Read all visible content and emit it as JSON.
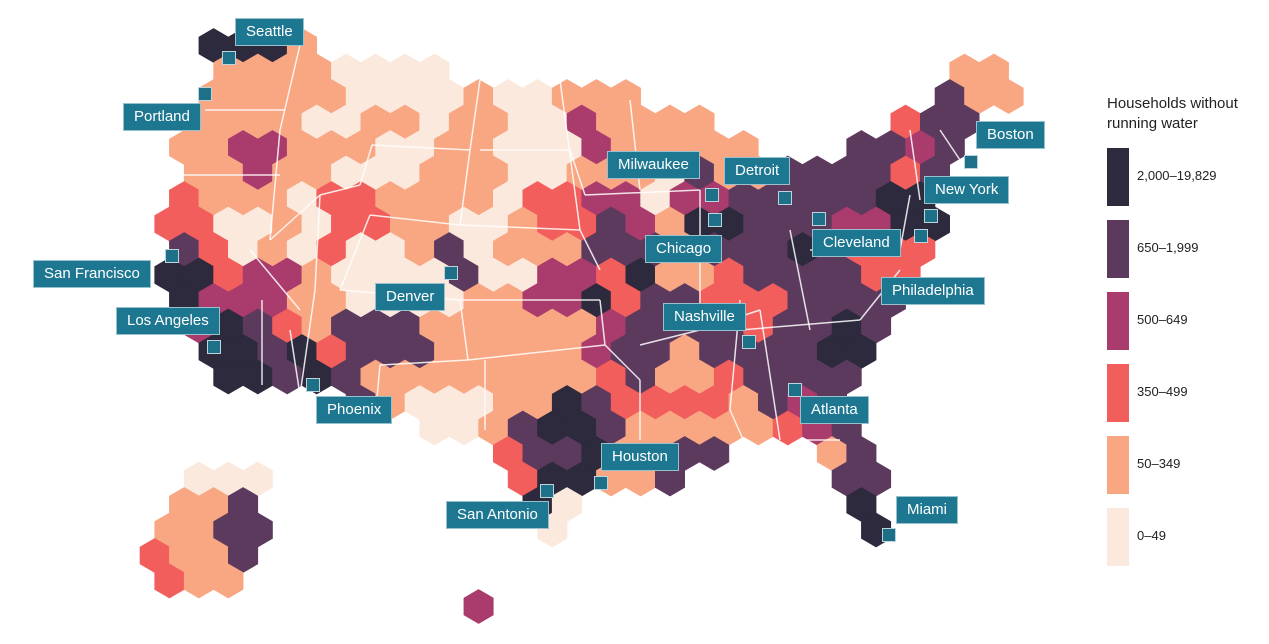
{
  "legend": {
    "title_line1": "Households without",
    "title_line2": "running water",
    "categories": [
      {
        "label": "2,000–19,829",
        "color": "#2d2a3d"
      },
      {
        "label": "650–1,999",
        "color": "#5c3a5e"
      },
      {
        "label": "500–649",
        "color": "#a93b6d"
      },
      {
        "label": "350–499",
        "color": "#f15e5c"
      },
      {
        "label": "50–349",
        "color": "#f9a682"
      },
      {
        "label": "0–49",
        "color": "#fbe9dd"
      }
    ]
  },
  "cities": [
    {
      "name": "Seattle"
    },
    {
      "name": "Portland"
    },
    {
      "name": "San Francisco"
    },
    {
      "name": "Los Angeles"
    },
    {
      "name": "Phoenix"
    },
    {
      "name": "Denver"
    },
    {
      "name": "San Antonio"
    },
    {
      "name": "Houston"
    },
    {
      "name": "Nashville"
    },
    {
      "name": "Atlanta"
    },
    {
      "name": "Miami"
    },
    {
      "name": "Chicago"
    },
    {
      "name": "Milwaukee"
    },
    {
      "name": "Detroit"
    },
    {
      "name": "Cleveland"
    },
    {
      "name": "Philadelphia"
    },
    {
      "name": "New York"
    },
    {
      "name": "Boston"
    }
  ]
}
